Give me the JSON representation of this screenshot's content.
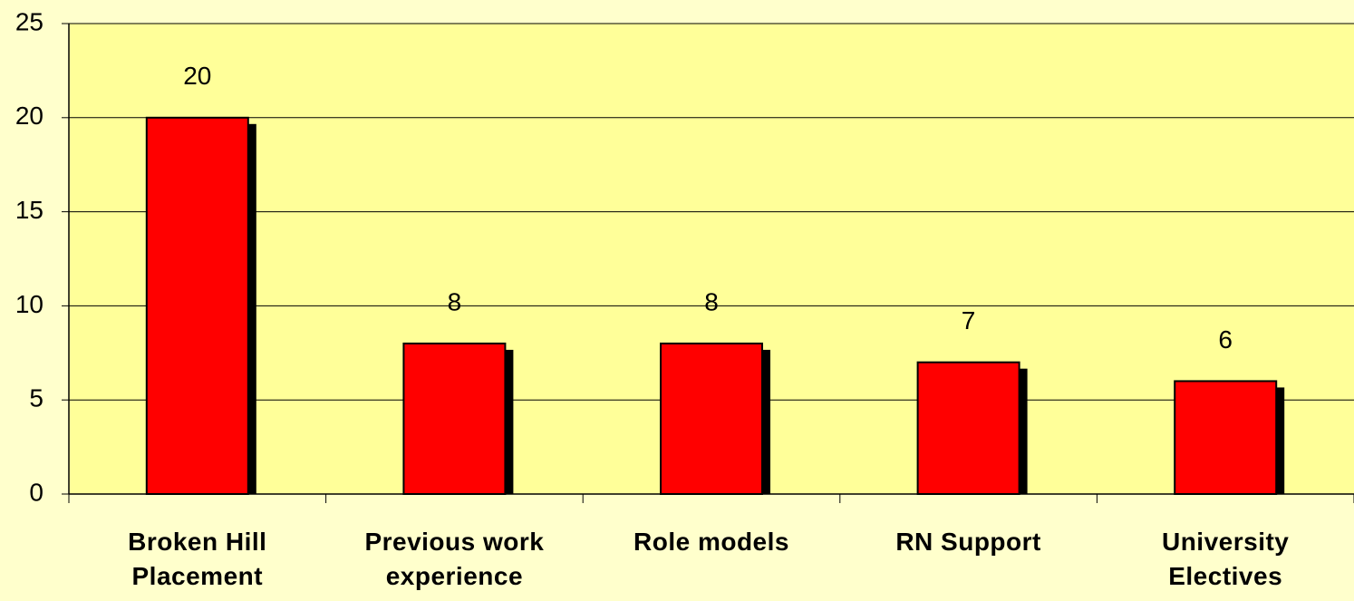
{
  "chart_data": {
    "type": "bar",
    "categories": [
      "Broken Hill Placement",
      "Previous work experience",
      "Role models",
      "RN Support",
      "University Electives"
    ],
    "values": [
      20,
      8,
      8,
      7,
      6
    ],
    "color": "#ff0000",
    "ylim": [
      0,
      25
    ],
    "yticks": [
      0,
      5,
      10,
      15,
      20,
      25
    ],
    "grid": true
  }
}
